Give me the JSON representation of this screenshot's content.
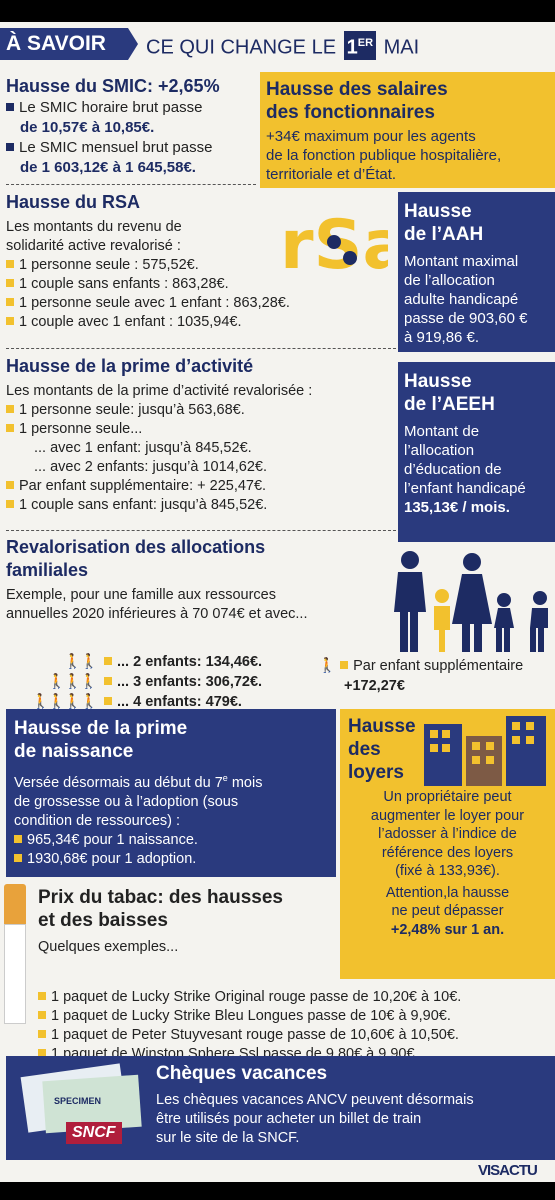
{
  "header": {
    "badge": "À SAVOIR",
    "title": "CE QUI CHANGE LE",
    "day": "1",
    "sup": "ER",
    "month": "MAI"
  },
  "smic": {
    "title": "Hausse du SMIC: +2,65%",
    "b1a": "Le SMIC horaire brut passe",
    "b1b": "de 10,57€ à 10,85€.",
    "b2a": "Le SMIC mensuel brut passe",
    "b2b": "de 1 603,12€ à 1 645,58€."
  },
  "salaires": {
    "title1": "Hausse des salaires",
    "title2": "des fonctionnaires",
    "t1": "+34€ maximum pour les agents",
    "t2": "de la fonction publique hospitalière,",
    "t3": "territoriale et d’État."
  },
  "rsa": {
    "title": "Hausse du RSA",
    "intro1": "Les montants du revenu de",
    "intro2": "solidarité active revalorisé :",
    "i1": "1 personne seule : 575,52€.",
    "i2": "1 couple sans enfants : 863,28€.",
    "i3": "1 personne seule avec 1 enfant : 863,28€.",
    "i4": "1 couple avec 1 enfant : 1035,94€.",
    "logo": "rSa"
  },
  "aah": {
    "t1": "Hausse",
    "t2": "de l’AAH",
    "l1": "Montant maximal",
    "l2": "de l’allocation",
    "l3": "adulte handicapé",
    "l4": "passe de 903,60 €",
    "l5": "à 919,86 €."
  },
  "prime": {
    "title": "Hausse de la prime d’activité",
    "intro": "Les montants de la prime d’activité revalorisée :",
    "i1": "1 personne seule: jusqu’à 563,68€.",
    "i2": "1 personne seule...",
    "i3": "... avec 1 enfant: jusqu’à 845,52€.",
    "i4": "... avec 2 enfants: jusqu’à 1014,62€.",
    "i5": "Par enfant supplémentaire: + 225,47€.",
    "i6": "1 couple sans enfant: jusqu’à 845,52€."
  },
  "aeeh": {
    "t1": "Hausse",
    "t2": "de l’AEEH",
    "l1": "Montant de",
    "l2": "l’allocation",
    "l3": "d’éducation de",
    "l4": "l’enfant handicapé",
    "l5": "135,13€ / mois."
  },
  "familiales": {
    "t1": "Revalorisation des allocations",
    "t2": "familiales",
    "ex1": "Exemple, pour une famille aux ressources",
    "ex2": "annuelles 2020 inférieures à 70 074€ et avec...",
    "e2": "... 2 enfants: 134,46€.",
    "e3": "... 3 enfants: 306,72€.",
    "e4": "... 4 enfants: 479€.",
    "sup1": "Par enfant supplémentaire",
    "sup2": "+172,27€"
  },
  "naissance": {
    "t1": "Hausse de la prime",
    "t2": "de naissance",
    "l1": "Versée désormais au début du 7",
    "l1sup": "e",
    "l1b": " mois",
    "l2": "de grossesse ou à l’adoption (sous",
    "l3": "condition de ressources) :",
    "i1": "965,34€ pour 1 naissance.",
    "i2": "1930,68€ pour 1 adoption."
  },
  "loyers": {
    "t1": "Hausse",
    "t2": "des",
    "t3": "loyers",
    "l1": "Un propriétaire peut",
    "l2": "augmenter le loyer pour",
    "l3": "l’adosser à l’indice de",
    "l4": "référence des loyers",
    "l5": "(fixé à 133,93€).",
    "l6": "Attention,la hausse",
    "l7": "ne peut dépasser",
    "l8": "+2,48% sur 1 an."
  },
  "tabac": {
    "t1": "Prix du tabac: des hausses",
    "t2": "et des baisses",
    "ex": "Quelques exemples...",
    "i1": "1 paquet de Lucky Strike Original rouge passe de 10,20€ à 10€.",
    "i2": "1 paquet de Lucky Strike Bleu Longues passe de 10€ à 9,90€.",
    "i3": "1 paquet de Peter Stuyvesant rouge passe de 10,60€ à 10,50€.",
    "i4": "1 paquet de Winston Sphere Ssl passe de 9,80€ à 9,90€."
  },
  "cheques": {
    "title": "Chèques vacances",
    "l1": "Les chèques vacances ANCV peuvent désormais",
    "l2": "être utilisés pour acheter un billet de train",
    "l3": "sur le site de la SNCF.",
    "sncf": "SNCF",
    "specimen": "SPECIMEN"
  },
  "footer": {
    "brand": "VISACTU"
  }
}
